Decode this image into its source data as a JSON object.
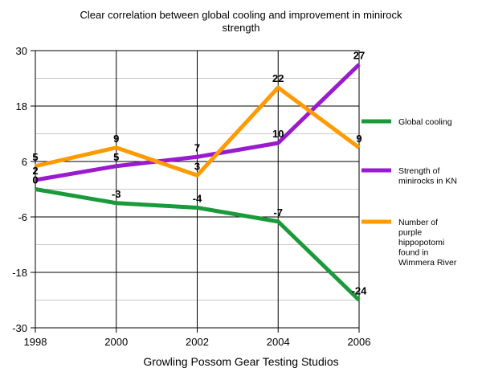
{
  "chart_data": {
    "type": "line",
    "title_line1": "Clear correlation between global cooling and improvement in minirock",
    "title_line2": "strength",
    "xlabel": "Growling Possom Gear Testing Studios",
    "ylabel": "",
    "x": [
      1998,
      2000,
      2002,
      2004,
      2006
    ],
    "x_tick_labels": [
      "1998",
      "2000",
      "2002",
      "2004",
      "2006"
    ],
    "ylim": [
      -30,
      30
    ],
    "y_ticks": [
      30,
      18,
      6,
      -6,
      -18,
      -30
    ],
    "y_tick_labels": [
      "30",
      "18",
      "6",
      "-6",
      "-18",
      "-30"
    ],
    "grid": true,
    "legend_position": "right",
    "series": [
      {
        "name": "Global cooling",
        "color": "#1a9a3a",
        "values": [
          0,
          -3,
          -4,
          -7,
          -24
        ],
        "labels": [
          "0",
          "-3",
          "-4",
          "-7",
          "-24"
        ]
      },
      {
        "name": "Strength of minirocks in KN",
        "color": "#9a1acd",
        "values": [
          2,
          5,
          7,
          10,
          27
        ],
        "labels": [
          "2",
          "5",
          "7",
          "10",
          "27"
        ]
      },
      {
        "name": "Number of purple hippopotomi found in Wimmera River",
        "color": "#ff9a00",
        "values": [
          5,
          9,
          3,
          22,
          9
        ],
        "labels": [
          "5",
          "9",
          "3",
          "22",
          "9"
        ]
      }
    ]
  }
}
